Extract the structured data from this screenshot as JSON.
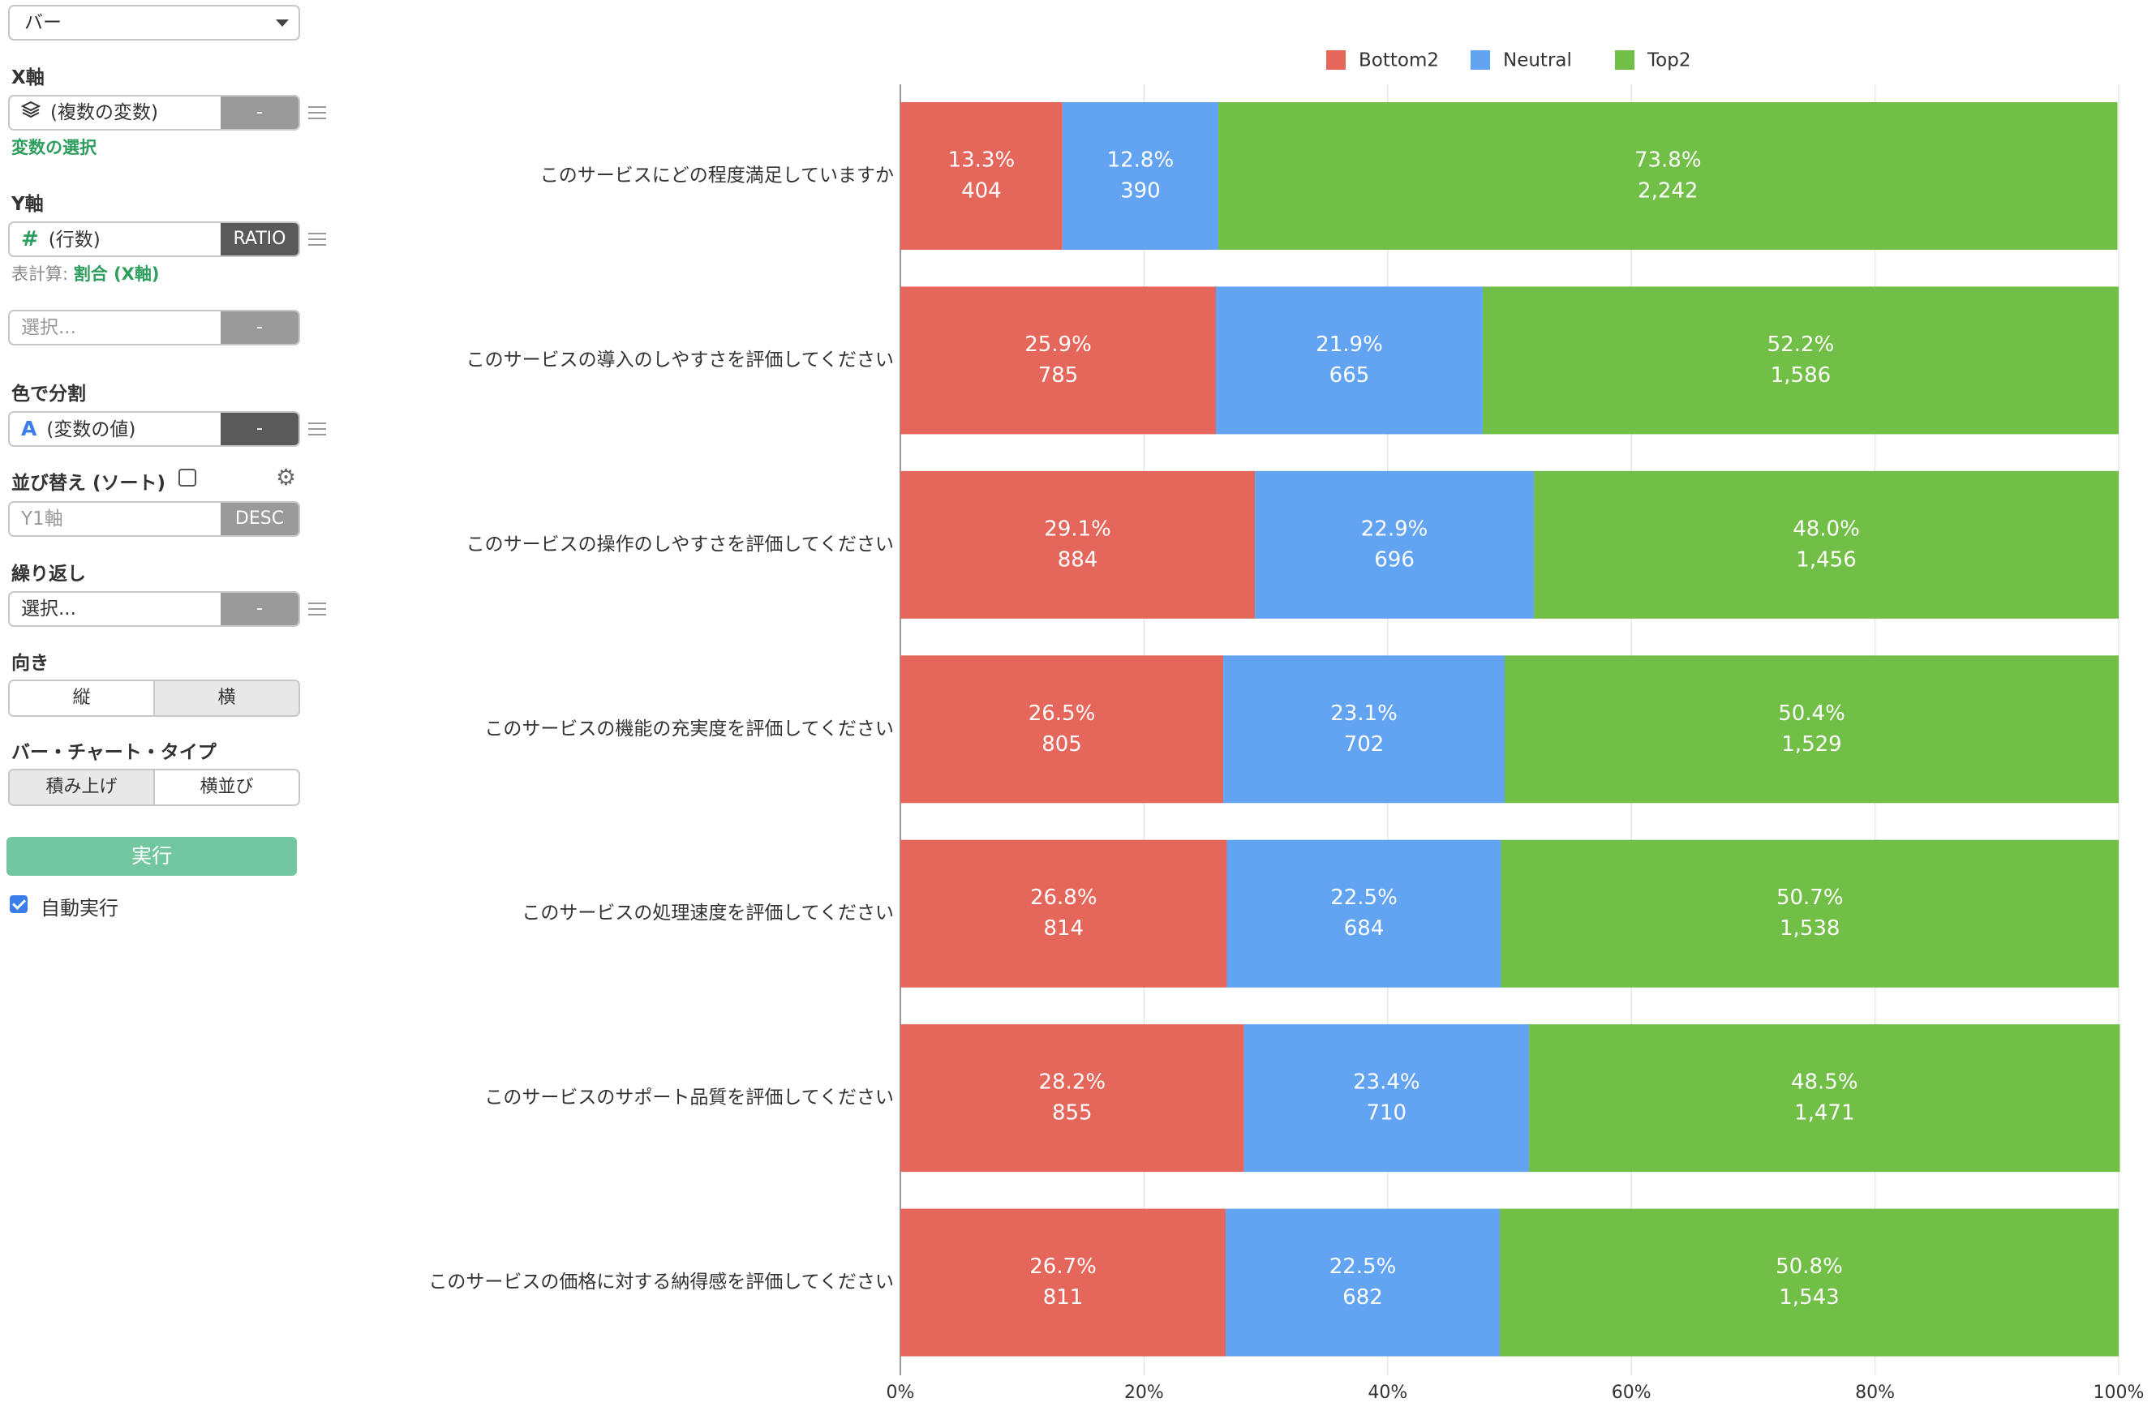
{
  "controls": {
    "chart_type_select": "バー",
    "x_axis": {
      "label": "X軸",
      "value": "(複数の変数)",
      "button": "-",
      "link": "変数の選択"
    },
    "y_axis": {
      "label": "Y軸",
      "value": "(行数)",
      "button": "RATIO",
      "calc_prefix": "表計算:",
      "calc_value": "割合 (X軸)"
    },
    "extra_select": {
      "placeholder": "選択...",
      "button": "-"
    },
    "color_split": {
      "label": "色で分割",
      "value": "(変数の値)",
      "button": "-"
    },
    "sort": {
      "label": "並び替え (ソート)",
      "placeholder": "Y1軸",
      "button": "DESC"
    },
    "repeat": {
      "label": "繰り返し",
      "placeholder": "選択...",
      "button": "-"
    },
    "orientation": {
      "label": "向き",
      "options": [
        "縦",
        "横"
      ],
      "selected": "横"
    },
    "bar_type": {
      "label": "バー・チャート・タイプ",
      "options": [
        "積み上げ",
        "横並び"
      ],
      "selected": "積み上げ"
    },
    "run_button": "実行",
    "auto_run": {
      "label": "自動実行",
      "checked": true
    },
    "icons": {
      "x_axis": "layers-icon",
      "y_axis": "hash-icon",
      "color": "letter-a-icon",
      "settings": "gear-icon",
      "menu": "hamburger-icon"
    }
  },
  "chart_data": {
    "type": "bar",
    "orientation": "horizontal",
    "stacked": true,
    "categories": [
      "このサービスにどの程度満足していますか",
      "このサービスの導入のしやすさを評価してください",
      "このサービスの操作のしやすさを評価してください",
      "このサービスの機能の充実度を評価してください",
      "このサービスの処理速度を評価してください",
      "このサービスのサポート品質を評価してください",
      "このサービスの価格に対する納得感を評価してください"
    ],
    "series": [
      {
        "name": "Bottom2",
        "color": "#e5665b",
        "values": [
          13.3,
          25.9,
          29.1,
          26.5,
          26.8,
          28.2,
          26.7
        ],
        "labels_pct": [
          "13.3%",
          "25.9%",
          "29.1%",
          "26.5%",
          "26.8%",
          "28.2%",
          "26.7%"
        ],
        "labels_count": [
          "404",
          "785",
          "884",
          "805",
          "814",
          "855",
          "811"
        ]
      },
      {
        "name": "Neutral",
        "color": "#63a4f2",
        "values": [
          12.8,
          21.9,
          22.9,
          23.1,
          22.5,
          23.4,
          22.5
        ],
        "labels_pct": [
          "12.8%",
          "21.9%",
          "22.9%",
          "23.1%",
          "22.5%",
          "23.4%",
          "22.5%"
        ],
        "labels_count": [
          "390",
          "665",
          "696",
          "702",
          "684",
          "710",
          "682"
        ]
      },
      {
        "name": "Top2",
        "color": "#72bf47",
        "values": [
          73.8,
          52.2,
          48.0,
          50.4,
          50.7,
          48.5,
          50.8
        ],
        "labels_pct": [
          "73.8%",
          "52.2%",
          "48.0%",
          "50.4%",
          "50.7%",
          "48.5%",
          "50.8%"
        ],
        "labels_count": [
          "2,242",
          "1,586",
          "1,456",
          "1,529",
          "1,538",
          "1,471",
          "1,543"
        ]
      }
    ],
    "x_ticks": [
      "0%",
      "20%",
      "40%",
      "60%",
      "80%",
      "100%"
    ],
    "xlim": [
      0,
      100
    ],
    "grid": true,
    "legend": "top"
  }
}
